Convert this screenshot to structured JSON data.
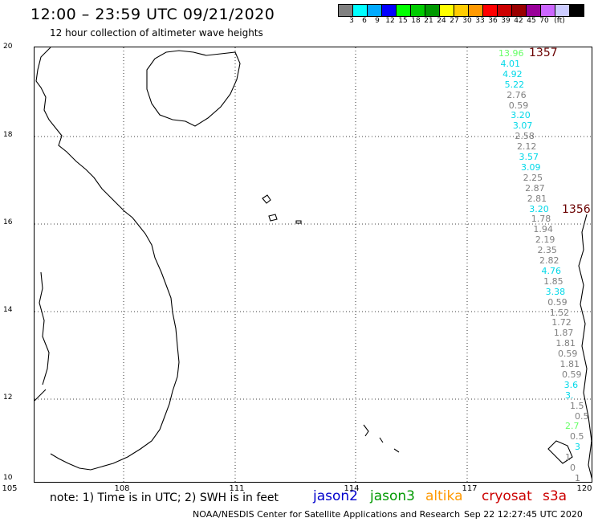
{
  "header": {
    "title": "12:00 – 23:59 UTC 09/21/2020",
    "subtitle": "12 hour collection of altimeter wave heights"
  },
  "color_scale": {
    "unit": "(ft)",
    "labels": [
      "3",
      "6",
      "9",
      "12",
      "15",
      "18",
      "21",
      "24",
      "27",
      "30",
      "33",
      "36",
      "39",
      "42",
      "45",
      "70"
    ],
    "colors": [
      "#808080",
      "#00ffff",
      "#00aaff",
      "#0000ff",
      "#00ff00",
      "#00cc00",
      "#009900",
      "#ffff00",
      "#ffcc00",
      "#ff9900",
      "#ff0000",
      "#cc0000",
      "#990000",
      "#990099",
      "#cc66ff",
      "#ccccff",
      "#000000"
    ]
  },
  "map": {
    "lat_labels": [
      "20",
      "18",
      "16",
      "14",
      "12",
      "10"
    ],
    "lon_labels": [
      "105",
      "108",
      "111",
      "114",
      "117",
      "120"
    ],
    "wave_points": [
      {
        "value": "13.96",
        "color": "#66ff66"
      },
      {
        "value": "4.01",
        "color": "#00d8e8"
      },
      {
        "value": "4.92",
        "color": "#00d8e8"
      },
      {
        "value": "5.22",
        "color": "#00d8e8"
      },
      {
        "value": "2.76",
        "color": "#808080"
      },
      {
        "value": "0.59",
        "color": "#808080"
      },
      {
        "value": "3.20",
        "color": "#00d8e8"
      },
      {
        "value": "3.07",
        "color": "#00d8e8"
      },
      {
        "value": "2.58",
        "color": "#808080"
      },
      {
        "value": "2.12",
        "color": "#808080"
      },
      {
        "value": "3.57",
        "color": "#00d8e8"
      },
      {
        "value": "3.09",
        "color": "#00d8e8"
      },
      {
        "value": "2.25",
        "color": "#808080"
      },
      {
        "value": "2.87",
        "color": "#808080"
      },
      {
        "value": "2.81",
        "color": "#808080"
      },
      {
        "value": "3.20",
        "color": "#00d8e8"
      },
      {
        "value": "1.78",
        "color": "#808080"
      },
      {
        "value": "1.94",
        "color": "#808080"
      },
      {
        "value": "2.19",
        "color": "#808080"
      },
      {
        "value": "2.35",
        "color": "#808080"
      },
      {
        "value": "2.82",
        "color": "#808080"
      },
      {
        "value": "4.76",
        "color": "#00d8e8"
      },
      {
        "value": "1.85",
        "color": "#808080"
      },
      {
        "value": "3.38",
        "color": "#00d8e8"
      },
      {
        "value": "0.59",
        "color": "#808080"
      },
      {
        "value": "1.52",
        "color": "#808080"
      },
      {
        "value": "1.72",
        "color": "#808080"
      },
      {
        "value": "1.87",
        "color": "#808080"
      },
      {
        "value": "1.81",
        "color": "#808080"
      },
      {
        "value": "0.59",
        "color": "#808080"
      },
      {
        "value": "1.81",
        "color": "#808080"
      },
      {
        "value": "0.59",
        "color": "#808080"
      },
      {
        "value": "3.6",
        "color": "#00d8e8"
      },
      {
        "value": "3.",
        "color": "#00d8e8"
      },
      {
        "value": "1.5",
        "color": "#808080"
      },
      {
        "value": "0.5",
        "color": "#808080"
      },
      {
        "value": "2.7",
        "color": "#66ff66"
      },
      {
        "value": "0.5",
        "color": "#808080"
      },
      {
        "value": "3",
        "color": "#00d8e8"
      },
      {
        "value": "1",
        "color": "#808080"
      },
      {
        "value": "0",
        "color": "#808080"
      },
      {
        "value": "1",
        "color": "#808080"
      }
    ],
    "pass_labels": [
      {
        "text": "1357"
      },
      {
        "text": "1356"
      }
    ]
  },
  "legend": {
    "note": "note: 1) Time is in UTC; 2) SWH is in feet",
    "missions": [
      {
        "name": "jason2",
        "color": "#0000cc"
      },
      {
        "name": "jason3",
        "color": "#009900"
      },
      {
        "name": "altika",
        "color": "#ff9900"
      },
      {
        "name": "cryosat",
        "color": "#cc0000"
      },
      {
        "name": "s3a",
        "color": "#cc0000"
      }
    ]
  },
  "footer": {
    "source": "NOAA/NESDIS Center for Satellite Applications and Research",
    "timestamp": "Sep 22 12:27:45 UTC 2020"
  }
}
